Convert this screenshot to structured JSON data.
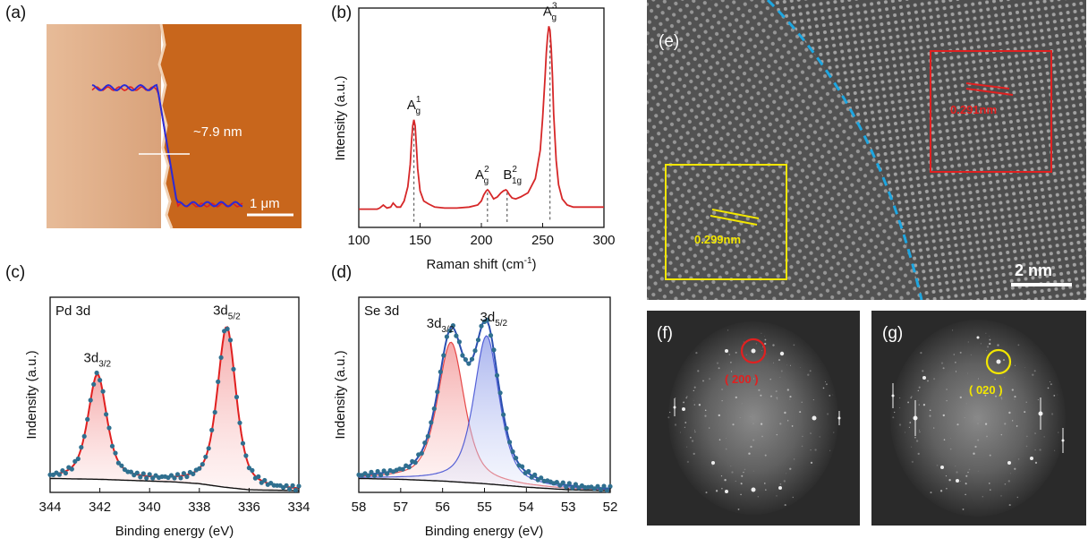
{
  "chart_data": [
    {
      "panel": "(a)",
      "type": "line",
      "annotations": {
        "height": "~7.9 nm",
        "scalebar": "1 μm"
      },
      "colors": {
        "low": "#e1b08c",
        "high": "#c66419",
        "profile": "#2b2bd6",
        "profile_fit": "#e02020"
      }
    },
    {
      "panel": "(b)",
      "type": "line",
      "xlabel": "Raman shift (cm",
      "xlabel_sup": "-1",
      "xlabel_end": ")",
      "ylabel": "Intensity (a.u.)",
      "xlim": [
        100,
        300
      ],
      "ylim": [
        0,
        1.08
      ],
      "xticks": [
        "100",
        "150",
        "200",
        "250",
        "300"
      ],
      "x": [
        100,
        105,
        110,
        115,
        117,
        120,
        123,
        126,
        128,
        131,
        134,
        137,
        140,
        142,
        143,
        144,
        145,
        146,
        147,
        148,
        150,
        153,
        157,
        162,
        170,
        180,
        190,
        197,
        200,
        202,
        204,
        205,
        206,
        208,
        210,
        213,
        216,
        218,
        220,
        221,
        222,
        223,
        225,
        228,
        232,
        238,
        244,
        248,
        250,
        252,
        253,
        254,
        255,
        256,
        257,
        258,
        259,
        261,
        263,
        266,
        270,
        275,
        280,
        290,
        300
      ],
      "y": [
        0.09,
        0.09,
        0.09,
        0.09,
        0.095,
        0.11,
        0.095,
        0.1,
        0.12,
        0.1,
        0.1,
        0.13,
        0.2,
        0.31,
        0.42,
        0.5,
        0.53,
        0.5,
        0.4,
        0.29,
        0.18,
        0.13,
        0.115,
        0.1,
        0.095,
        0.095,
        0.1,
        0.11,
        0.13,
        0.16,
        0.18,
        0.185,
        0.18,
        0.16,
        0.14,
        0.15,
        0.17,
        0.18,
        0.185,
        0.18,
        0.17,
        0.16,
        0.145,
        0.14,
        0.15,
        0.17,
        0.24,
        0.38,
        0.54,
        0.74,
        0.86,
        0.94,
        0.99,
        0.97,
        0.88,
        0.74,
        0.56,
        0.33,
        0.21,
        0.14,
        0.11,
        0.1,
        0.1,
        0.1,
        0.1
      ],
      "peaks": [
        {
          "x": 145,
          "y": 0.53,
          "label": "A",
          "sub": "g",
          "sup": "1"
        },
        {
          "x": 205,
          "y": 0.185,
          "label": "A",
          "sub": "g",
          "sup": "2"
        },
        {
          "x": 221,
          "y": 0.185,
          "label": "B",
          "sub": "1g",
          "sup": "2"
        },
        {
          "x": 256,
          "y": 0.99,
          "label": "A",
          "sub": "g",
          "sup": "3"
        }
      ],
      "line_color": "#d62728"
    },
    {
      "panel": "(c)",
      "type": "line",
      "xlabel": "Binding energy (eV)",
      "ylabel": "Indensity (a.u.)",
      "inner_label": "Pd 3d",
      "xlim": [
        344,
        334
      ],
      "ylim": [
        0,
        1.12
      ],
      "xticks": [
        "344",
        "342",
        "340",
        "338",
        "336",
        "334"
      ],
      "peaks": [
        {
          "center": 342.1,
          "height": 0.6,
          "width": 0.45,
          "label": "3d",
          "sub": "3/2"
        },
        {
          "center": 336.9,
          "height": 0.92,
          "width": 0.45,
          "label": "3d",
          "sub": "5/2"
        }
      ],
      "background": {
        "x": [
          344,
          342,
          340,
          339,
          338,
          337,
          336,
          334
        ],
        "y": [
          0.08,
          0.075,
          0.065,
          0.06,
          0.05,
          0.03,
          0.015,
          0.01
        ]
      },
      "colors": {
        "fit": "#e02020",
        "fill": "#f2a3a3",
        "dots": "#2f6f8f",
        "bg": "#111111"
      }
    },
    {
      "panel": "(d)",
      "type": "line",
      "xlabel": "Binding energy (eV)",
      "ylabel": "Indensity (a.u.)",
      "inner_label": "Se 3d",
      "xlim": [
        58,
        52
      ],
      "ylim": [
        0,
        1.12
      ],
      "xticks": [
        "58",
        "57",
        "56",
        "55",
        "54",
        "53",
        "52"
      ],
      "peaks": [
        {
          "center": 55.8,
          "height": 0.8,
          "width": 0.38,
          "label": "3d",
          "sub": "3/2",
          "color": "#e02020",
          "fill": "#f2a3a3"
        },
        {
          "center": 54.95,
          "height": 0.85,
          "width": 0.36,
          "label": "3d",
          "sub": "5/2",
          "color": "#3040d0",
          "fill": "#a8b4ee"
        }
      ],
      "background": {
        "x": [
          58,
          57,
          56,
          55,
          54,
          53,
          52
        ],
        "y": [
          0.08,
          0.075,
          0.065,
          0.05,
          0.03,
          0.015,
          0.01
        ]
      },
      "colors": {
        "envelope": "#2b4fb0",
        "dots": "#2f6f8f",
        "bg": "#111111"
      }
    },
    {
      "panel": "(e)",
      "type": "table",
      "annotations": {
        "yellow_d": "0.299nm",
        "red_d": "0.291nm",
        "scalebar": "2 nm"
      },
      "colors": {
        "boundary": "#1ea6e0",
        "yellow": "#f2e600",
        "red": "#e02020"
      }
    },
    {
      "panel": "(f)",
      "type": "table",
      "annotations": {
        "spot": "( 200 )"
      },
      "colors": {
        "ring": "#e02020"
      }
    },
    {
      "panel": "(g)",
      "type": "table",
      "annotations": {
        "spot": "( 020 )"
      },
      "colors": {
        "ring": "#f2e600"
      }
    }
  ]
}
